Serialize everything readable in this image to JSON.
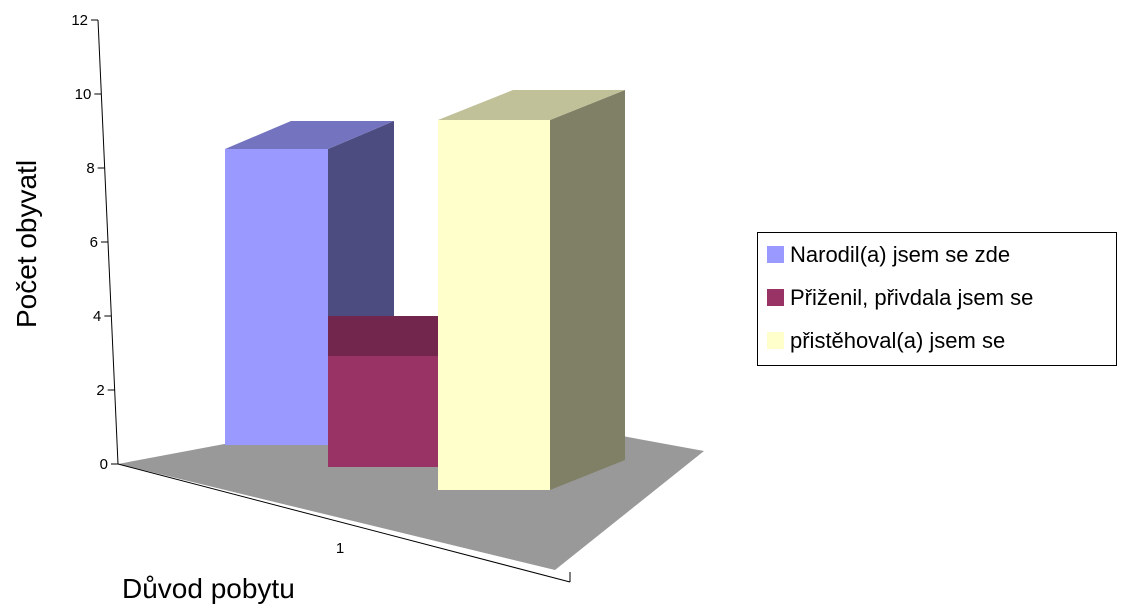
{
  "chart_data": {
    "type": "bar",
    "categories": [
      "1"
    ],
    "series": [
      {
        "name": "Narodil(a) jsem se zde",
        "values": [
          8
        ],
        "color": "#9999ff",
        "side_color": "#4c4c80",
        "top_color": "#7373c0"
      },
      {
        "name": "Přiženil, přivdala jsem se",
        "values": [
          3
        ],
        "color": "#993366",
        "side_color": "#4d1933",
        "top_color": "#73264d"
      },
      {
        "name": "přistěhoval(a) jsem se",
        "values": [
          10
        ],
        "color": "#ffffcc",
        "side_color": "#808066",
        "top_color": "#c0c099"
      }
    ],
    "title": "",
    "xlabel": "Důvod pobytu",
    "ylabel": "Počet obyvatl",
    "ylim": [
      0,
      12
    ],
    "yticks": [
      "0",
      "2",
      "4",
      "6",
      "8",
      "10",
      "12"
    ],
    "floor_color": "#999999",
    "grid": false,
    "legend_position": "right"
  }
}
